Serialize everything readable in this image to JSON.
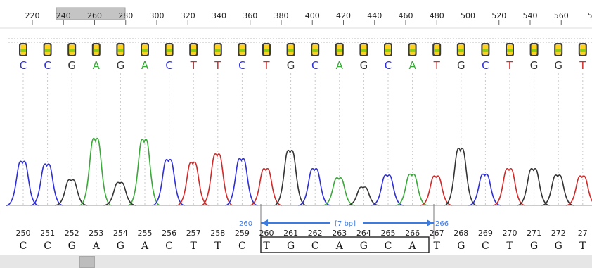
{
  "ruler": {
    "ticks": [
      "220",
      "240",
      "260",
      "280",
      "300",
      "320",
      "340",
      "360",
      "380",
      "400",
      "420",
      "440",
      "460",
      "480",
      "500",
      "520",
      "540",
      "560",
      "58"
    ]
  },
  "called_bases": [
    "C",
    "C",
    "G",
    "A",
    "G",
    "A",
    "C",
    "T",
    "T",
    "C",
    "T",
    "G",
    "C",
    "A",
    "G",
    "C",
    "A",
    "T",
    "G",
    "C",
    "T",
    "G",
    "G",
    "T"
  ],
  "colors": {
    "A": "#3aa93a",
    "C": "#2f2fd8",
    "G": "#333333",
    "T": "#d02a2a",
    "accent": "#3c7be0"
  },
  "trace_peaks": [
    {
      "base": "C",
      "h": 0.48
    },
    {
      "base": "C",
      "h": 0.45
    },
    {
      "base": "G",
      "h": 0.28
    },
    {
      "base": "A",
      "h": 0.73
    },
    {
      "base": "G",
      "h": 0.25
    },
    {
      "base": "A",
      "h": 0.72
    },
    {
      "base": "C",
      "h": 0.5
    },
    {
      "base": "T",
      "h": 0.47
    },
    {
      "base": "T",
      "h": 0.56
    },
    {
      "base": "C",
      "h": 0.51
    },
    {
      "base": "T",
      "h": 0.4
    },
    {
      "base": "G",
      "h": 0.6
    },
    {
      "base": "C",
      "h": 0.4
    },
    {
      "base": "A",
      "h": 0.3
    },
    {
      "base": "G",
      "h": 0.2
    },
    {
      "base": "C",
      "h": 0.33
    },
    {
      "base": "A",
      "h": 0.34
    },
    {
      "base": "T",
      "h": 0.32
    },
    {
      "base": "G",
      "h": 0.62
    },
    {
      "base": "C",
      "h": 0.34
    },
    {
      "base": "T",
      "h": 0.4
    },
    {
      "base": "G",
      "h": 0.4
    },
    {
      "base": "G",
      "h": 0.33
    },
    {
      "base": "T",
      "h": 0.32
    }
  ],
  "positions": [
    "250",
    "251",
    "252",
    "253",
    "254",
    "255",
    "256",
    "257",
    "258",
    "259",
    "260",
    "261",
    "262",
    "263",
    "264",
    "265",
    "266",
    "267",
    "268",
    "269",
    "270",
    "271",
    "272",
    "27"
  ],
  "bottom_sequence": [
    "C",
    "C",
    "G",
    "A",
    "G",
    "A",
    "C",
    "T",
    "T",
    "C",
    "T",
    "G",
    "C",
    "A",
    "G",
    "C",
    "A",
    "T",
    "G",
    "C",
    "T",
    "G",
    "G",
    "T"
  ],
  "selection": {
    "start_label": "260",
    "end_label": "266",
    "length_label": "[7 bp]"
  }
}
